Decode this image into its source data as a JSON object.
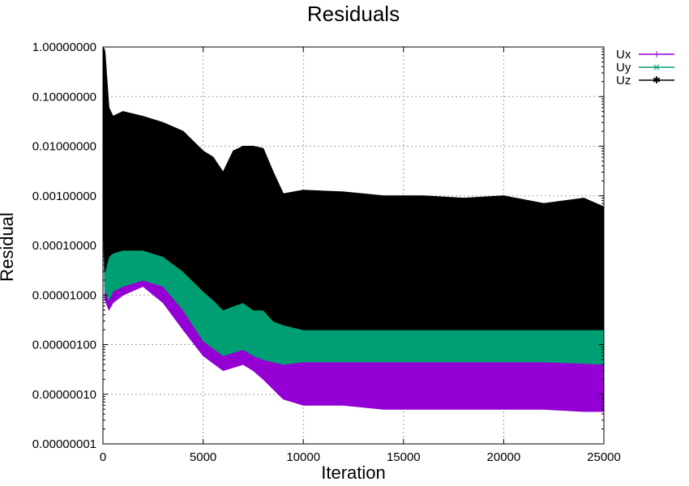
{
  "chart_data": {
    "type": "area",
    "title": "Residuals",
    "xlabel": "Iteration",
    "ylabel": "Residual",
    "yscale": "log",
    "xlim": [
      0,
      25000
    ],
    "ylim": [
      1e-08,
      1
    ],
    "grid": true,
    "legend_position": "top-right, outside plot",
    "x_ticks": [
      0,
      5000,
      10000,
      15000,
      20000,
      25000
    ],
    "x_tick_labels": [
      "0",
      "5000",
      "10000",
      "15000",
      "20000",
      "25000"
    ],
    "y_ticks": [
      1,
      0.1,
      0.01,
      0.001,
      0.0001,
      1e-05,
      1e-06,
      1e-07,
      1e-08
    ],
    "y_tick_labels": [
      "1.00000000",
      "0.10000000",
      "0.01000000",
      "0.00100000",
      "0.00010000",
      "0.00001000",
      "0.00000100",
      "0.00000010",
      "0.00000001"
    ],
    "series": [
      {
        "name": "Ux",
        "color": "#9400d3",
        "marker": "+",
        "x": [
          0,
          100,
          300,
          500,
          1000,
          2000,
          3000,
          4000,
          5000,
          6000,
          7000,
          7500,
          8000,
          9000,
          10000,
          12000,
          14000,
          16000,
          18000,
          20000,
          22000,
          24000,
          25000
        ],
        "high": [
          0.005,
          0.0003,
          8e-05,
          2e-05,
          4e-05,
          6e-05,
          4.5e-05,
          2e-05,
          4e-06,
          1.5e-06,
          4e-06,
          4.5e-06,
          2.5e-06,
          6e-07,
          5e-07,
          5e-07,
          4.5e-07,
          4.5e-07,
          4.5e-07,
          4.5e-07,
          4.5e-07,
          4.2e-07,
          4e-07
        ],
        "low": [
          0.0004,
          8e-06,
          5e-06,
          7e-06,
          1e-05,
          1.5e-05,
          7e-06,
          2e-06,
          6e-07,
          3e-07,
          4e-07,
          3e-07,
          2e-07,
          8e-08,
          6e-08,
          6e-08,
          5e-08,
          5e-08,
          5e-08,
          5e-08,
          5e-08,
          4.5e-08,
          4.5e-08
        ]
      },
      {
        "name": "Uy",
        "color": "#009e73",
        "marker": "×",
        "x": [
          0,
          100,
          300,
          500,
          1000,
          2000,
          3000,
          4000,
          5000,
          6000,
          7000,
          7500,
          8000,
          9000,
          10000,
          12000,
          14000,
          16000,
          18000,
          20000,
          22000,
          24000,
          25000
        ],
        "high": [
          0.005,
          0.0008,
          0.0005,
          0.0003,
          0.00025,
          0.00018,
          0.00012,
          6e-05,
          1.2e-05,
          8e-06,
          3e-05,
          3e-05,
          1.5e-05,
          5e-06,
          4e-06,
          4e-06,
          3.5e-06,
          3.5e-06,
          3e-06,
          3e-06,
          3e-06,
          2.5e-06,
          2.2e-06
        ],
        "low": [
          0.0004,
          1.2e-05,
          8e-06,
          1.2e-05,
          1.5e-05,
          2e-05,
          1.5e-05,
          5e-06,
          1.2e-06,
          6e-07,
          8e-07,
          6e-07,
          5e-07,
          4e-07,
          4.5e-07,
          4.5e-07,
          4.5e-07,
          4.5e-07,
          4.5e-07,
          4.5e-07,
          4.5e-07,
          4.2e-07,
          4e-07
        ]
      },
      {
        "name": "Uz",
        "color": "#000000",
        "marker": "✱",
        "x": [
          0,
          100,
          300,
          500,
          1000,
          2000,
          3000,
          4000,
          5000,
          5500,
          6000,
          6500,
          7000,
          7500,
          8000,
          8500,
          9000,
          10000,
          12000,
          14000,
          16000,
          18000,
          20000,
          22000,
          24000,
          25000
        ],
        "high": [
          1.0,
          0.8,
          0.06,
          0.04,
          0.05,
          0.04,
          0.03,
          0.02,
          0.008,
          0.006,
          0.003,
          0.008,
          0.01,
          0.01,
          0.009,
          0.003,
          0.0011,
          0.0013,
          0.0012,
          0.001,
          0.001,
          0.0009,
          0.001,
          0.0007,
          0.0009,
          0.0006
        ],
        "low": [
          0.0004,
          3e-05,
          6e-05,
          7e-05,
          8e-05,
          8e-05,
          6e-05,
          3e-05,
          1.2e-05,
          8e-06,
          5e-06,
          6e-06,
          7e-06,
          5e-06,
          5e-06,
          3e-06,
          2.5e-06,
          2e-06,
          2e-06,
          2e-06,
          2e-06,
          2e-06,
          2e-06,
          2e-06,
          2e-06,
          2e-06
        ]
      }
    ]
  }
}
